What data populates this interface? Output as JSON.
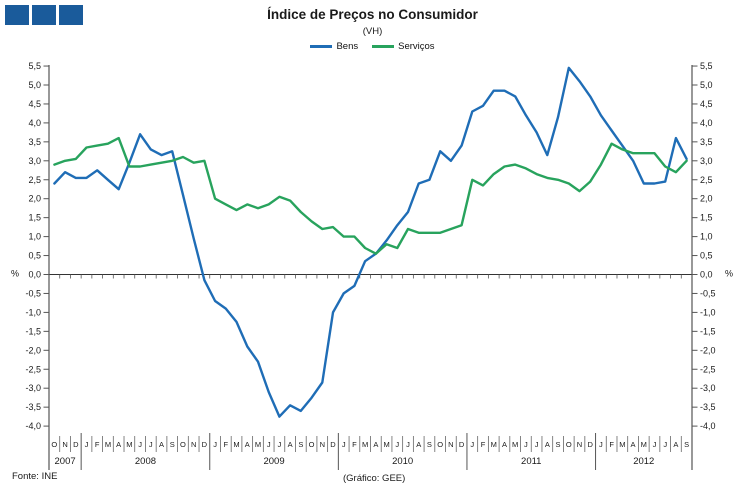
{
  "title": "Índice de Preços no Consumidor",
  "subtitle": "(VH)",
  "logo": {
    "color": "#1a5b9b",
    "square_count": 3
  },
  "legend": [
    {
      "label": "Bens",
      "color": "#1f6db6"
    },
    {
      "label": "Serviços",
      "color": "#28a35d"
    }
  ],
  "footer": {
    "source": "Fonte: INE",
    "credit": "(Gráfico: GEE)"
  },
  "chart_data": {
    "type": "line",
    "title": "Índice de Preços no Consumidor",
    "subtitle": "(VH)",
    "ylabel": "%",
    "unit_symbol": "%",
    "ylim": [
      -4.0,
      5.5
    ],
    "y_tick_step": 0.5,
    "y_tick_labels": [
      "5,5",
      "5,0",
      "4,5",
      "4,0",
      "3,5",
      "3,0",
      "2,5",
      "2,0",
      "1,5",
      "1,0",
      "0,5",
      "0,0",
      "-0,5",
      "-1,0",
      "-1,5",
      "-2,0",
      "-2,5",
      "-3,0",
      "-3,5",
      "-4,0"
    ],
    "grid": "zero-line-only",
    "legend_position": "top",
    "months": [
      "O",
      "N",
      "D",
      "J",
      "F",
      "M",
      "A",
      "M",
      "J",
      "J",
      "A",
      "S",
      "O",
      "N",
      "D",
      "J",
      "F",
      "M",
      "A",
      "M",
      "J",
      "J",
      "A",
      "S",
      "O",
      "N",
      "D",
      "J",
      "F",
      "M",
      "A",
      "M",
      "J",
      "J",
      "A",
      "S",
      "O",
      "N",
      "D",
      "J",
      "F",
      "M",
      "A",
      "M",
      "J",
      "J",
      "A",
      "S",
      "O",
      "N",
      "D",
      "J",
      "F",
      "M",
      "A",
      "M",
      "J",
      "J",
      "A",
      "S"
    ],
    "years": [
      {
        "label": "2007",
        "months": 3
      },
      {
        "label": "2008",
        "months": 12
      },
      {
        "label": "2009",
        "months": 12
      },
      {
        "label": "2010",
        "months": 12
      },
      {
        "label": "2011",
        "months": 12
      },
      {
        "label": "2012",
        "months": 9
      }
    ],
    "series": [
      {
        "name": "Bens",
        "color": "#1f6db6",
        "values": [
          2.4,
          2.7,
          2.55,
          2.55,
          2.75,
          2.5,
          2.25,
          2.95,
          3.7,
          3.3,
          3.15,
          3.25,
          2.1,
          0.95,
          -0.15,
          -0.7,
          -0.9,
          -1.25,
          -1.9,
          -2.3,
          -3.1,
          -3.75,
          -3.45,
          -3.6,
          -3.25,
          -2.85,
          -1.0,
          -0.5,
          -0.3,
          0.35,
          0.55,
          0.9,
          1.3,
          1.65,
          2.4,
          2.5,
          3.25,
          3.0,
          3.4,
          4.3,
          4.45,
          4.85,
          4.85,
          4.7,
          4.2,
          3.75,
          3.15,
          4.15,
          5.45,
          5.1,
          4.7,
          4.2,
          3.8,
          3.4,
          3.0,
          2.4,
          2.4,
          2.45,
          3.6,
          3.05
        ]
      },
      {
        "name": "Serviços",
        "color": "#28a35d",
        "values": [
          2.9,
          3.0,
          3.05,
          3.35,
          3.4,
          3.45,
          3.6,
          2.85,
          2.85,
          2.9,
          2.95,
          3.0,
          3.1,
          2.95,
          3.0,
          2.0,
          1.85,
          1.7,
          1.85,
          1.75,
          1.85,
          2.05,
          1.95,
          1.65,
          1.4,
          1.2,
          1.25,
          1.0,
          1.0,
          0.7,
          0.55,
          0.8,
          0.7,
          1.2,
          1.1,
          1.1,
          1.1,
          1.2,
          1.3,
          2.5,
          2.35,
          2.65,
          2.85,
          2.9,
          2.8,
          2.65,
          2.55,
          2.5,
          2.4,
          2.2,
          2.45,
          2.9,
          3.45,
          3.3,
          3.2,
          3.2,
          3.2,
          2.85,
          2.7,
          3.0
        ]
      }
    ]
  }
}
